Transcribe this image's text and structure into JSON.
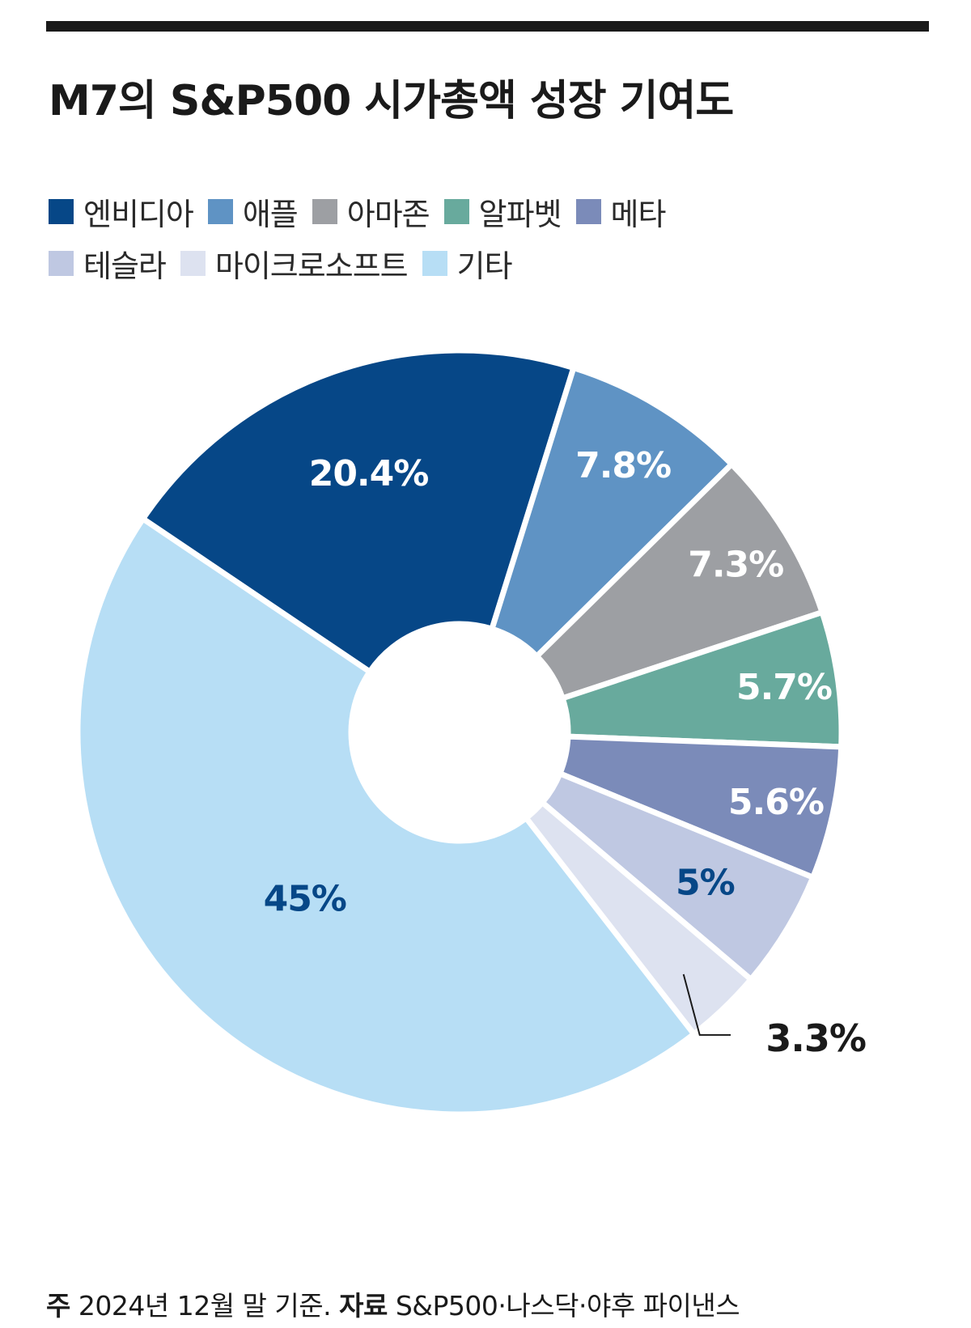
{
  "title": "M7의 S&P500 시가총액 성장 기여도",
  "legend": {
    "row1": [
      {
        "label": "엔비디아",
        "color": "#064787"
      },
      {
        "label": "애플",
        "color": "#5f93c4"
      },
      {
        "label": "아마존",
        "color": "#9d9fa3"
      },
      {
        "label": "알파벳",
        "color": "#68aa9d"
      },
      {
        "label": "메타",
        "color": "#7b8bb9"
      }
    ],
    "row2": [
      {
        "label": "테슬라",
        "color": "#bfc8e2"
      },
      {
        "label": "마이크로소프트",
        "color": "#dde2f0"
      },
      {
        "label": "기타",
        "color": "#b7def5"
      }
    ]
  },
  "chart_data": {
    "type": "pie",
    "variant": "donut",
    "title": "M7의 S&P500 시가총액 성장 기여도",
    "slices": [
      {
        "label": "엔비디아",
        "value": 20.4,
        "value_label": "20.4%",
        "color": "#064787",
        "text_color": "#ffffff"
      },
      {
        "label": "애플",
        "value": 7.8,
        "value_label": "7.8%",
        "color": "#5f93c4",
        "text_color": "#ffffff"
      },
      {
        "label": "아마존",
        "value": 7.3,
        "value_label": "7.3%",
        "color": "#9d9fa3",
        "text_color": "#ffffff"
      },
      {
        "label": "알파벳",
        "value": 5.7,
        "value_label": "5.7%",
        "color": "#68aa9d",
        "text_color": "#ffffff"
      },
      {
        "label": "메타",
        "value": 5.6,
        "value_label": "5.6%",
        "color": "#7b8bb9",
        "text_color": "#ffffff"
      },
      {
        "label": "테슬라",
        "value": 5.0,
        "value_label": "5%",
        "color": "#bfc8e2",
        "text_color": "#064787"
      },
      {
        "label": "마이크로소프트",
        "value": 3.3,
        "value_label": "3.3%",
        "color": "#dde2f0",
        "text_color": "#1a1a1a"
      },
      {
        "label": "기타",
        "value": 45.0,
        "value_label": "45%",
        "color": "#b7def5",
        "text_color": "#064787"
      }
    ],
    "legend_position": "top-left"
  },
  "footnote": {
    "note_label": "주",
    "note_text": "2024년 12월 말 기준.",
    "source_label": "자료",
    "source_text": "S&P500·나스닥·야후 파이낸스"
  }
}
